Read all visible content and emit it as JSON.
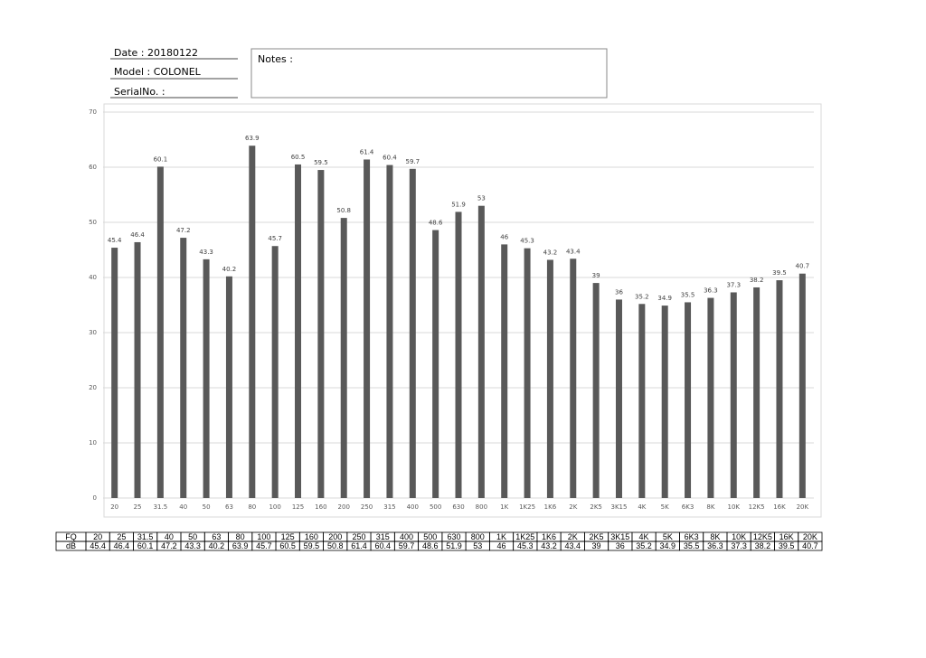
{
  "header": {
    "date": "Date : 20180122",
    "model": "Model : COLONEL",
    "serial": "SerialNo. :",
    "notes": "Notes :"
  },
  "chart_data": {
    "type": "bar",
    "categories": [
      "20",
      "25",
      "31.5",
      "40",
      "50",
      "63",
      "80",
      "100",
      "125",
      "160",
      "200",
      "250",
      "315",
      "400",
      "500",
      "630",
      "800",
      "1K",
      "1K25",
      "1K6",
      "2K",
      "2K5",
      "3K15",
      "4K",
      "5K",
      "6K3",
      "8K",
      "10K",
      "12K5",
      "16K",
      "20K"
    ],
    "values": [
      45.4,
      46.4,
      60.1,
      47.2,
      43.3,
      40.2,
      63.9,
      45.7,
      60.5,
      59.5,
      50.8,
      61.4,
      60.4,
      59.7,
      48.6,
      51.9,
      53,
      46,
      45.3,
      43.2,
      43.4,
      39,
      36,
      35.2,
      34.9,
      35.5,
      36.3,
      37.3,
      38.2,
      39.5,
      40.7
    ],
    "color": "#595959",
    "ylim": [
      0,
      70
    ],
    "yticks": [
      0,
      10,
      20,
      30,
      40,
      50,
      60,
      70
    ],
    "grid": true
  },
  "table": {
    "row_labels": [
      "FQ",
      "dB"
    ]
  }
}
